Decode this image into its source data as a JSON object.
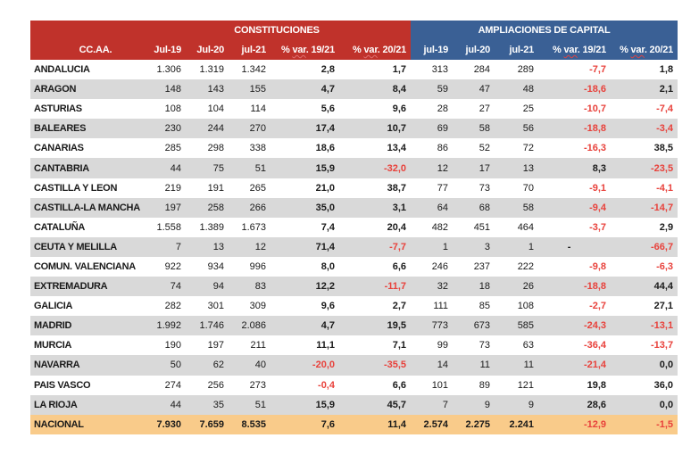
{
  "header": {
    "region_label": "CC.AA.",
    "group_constituciones": "CONSTITUCIONES",
    "group_ampliaciones": "AMPLIACIONES DE CAPITAL",
    "constituciones_columns": [
      "Jul-19",
      "Jul-20",
      "jul-21",
      "% var. 19/21",
      "% var. 20/21"
    ],
    "ampliaciones_columns": [
      "jul-19",
      "jul-20",
      "jul-21",
      "% var. 19/21",
      "% var. 20/21"
    ]
  },
  "colors": {
    "constituciones_header": "#c0322b",
    "ampliaciones_header": "#3a6095",
    "stripe": "#d9d9d9",
    "total_row": "#f9cb8a",
    "negative_text": "#e8413b"
  },
  "rows": [
    {
      "region": "ANDALUCIA",
      "c": [
        "1.306",
        "1.319",
        "1.342",
        "2,8",
        "1,7"
      ],
      "a": [
        "313",
        "284",
        "289",
        "-7,7",
        "1,8"
      ]
    },
    {
      "region": "ARAGON",
      "c": [
        "148",
        "143",
        "155",
        "4,7",
        "8,4"
      ],
      "a": [
        "59",
        "47",
        "48",
        "-18,6",
        "2,1"
      ]
    },
    {
      "region": "ASTURIAS",
      "c": [
        "108",
        "104",
        "114",
        "5,6",
        "9,6"
      ],
      "a": [
        "28",
        "27",
        "25",
        "-10,7",
        "-7,4"
      ]
    },
    {
      "region": "BALEARES",
      "c": [
        "230",
        "244",
        "270",
        "17,4",
        "10,7"
      ],
      "a": [
        "69",
        "58",
        "56",
        "-18,8",
        "-3,4"
      ]
    },
    {
      "region": "CANARIAS",
      "c": [
        "285",
        "298",
        "338",
        "18,6",
        "13,4"
      ],
      "a": [
        "86",
        "52",
        "72",
        "-16,3",
        "38,5"
      ]
    },
    {
      "region": "CANTABRIA",
      "c": [
        "44",
        "75",
        "51",
        "15,9",
        "-32,0"
      ],
      "a": [
        "12",
        "17",
        "13",
        "8,3",
        "-23,5"
      ]
    },
    {
      "region": "CASTILLA Y LEON",
      "c": [
        "219",
        "191",
        "265",
        "21,0",
        "38,7"
      ],
      "a": [
        "77",
        "73",
        "70",
        "-9,1",
        "-4,1"
      ]
    },
    {
      "region": "CASTILLA-LA MANCHA",
      "c": [
        "197",
        "258",
        "266",
        "35,0",
        "3,1"
      ],
      "a": [
        "64",
        "68",
        "58",
        "-9,4",
        "-14,7"
      ]
    },
    {
      "region": "CATALUÑA",
      "c": [
        "1.558",
        "1.389",
        "1.673",
        "7,4",
        "20,4"
      ],
      "a": [
        "482",
        "451",
        "464",
        "-3,7",
        "2,9"
      ]
    },
    {
      "region": "CEUTA Y MELILLA",
      "c": [
        "7",
        "13",
        "12",
        "71,4",
        "-7,7"
      ],
      "a": [
        "1",
        "3",
        "1",
        "-",
        "-66,7"
      ]
    },
    {
      "region": "COMUN. VALENCIANA",
      "c": [
        "922",
        "934",
        "996",
        "8,0",
        "6,6"
      ],
      "a": [
        "246",
        "237",
        "222",
        "-9,8",
        "-6,3"
      ]
    },
    {
      "region": "EXTREMADURA",
      "c": [
        "74",
        "94",
        "83",
        "12,2",
        "-11,7"
      ],
      "a": [
        "32",
        "18",
        "26",
        "-18,8",
        "44,4"
      ]
    },
    {
      "region": "GALICIA",
      "c": [
        "282",
        "301",
        "309",
        "9,6",
        "2,7"
      ],
      "a": [
        "111",
        "85",
        "108",
        "-2,7",
        "27,1"
      ]
    },
    {
      "region": "MADRID",
      "c": [
        "1.992",
        "1.746",
        "2.086",
        "4,7",
        "19,5"
      ],
      "a": [
        "773",
        "673",
        "585",
        "-24,3",
        "-13,1"
      ]
    },
    {
      "region": "MURCIA",
      "c": [
        "190",
        "197",
        "211",
        "11,1",
        "7,1"
      ],
      "a": [
        "99",
        "73",
        "63",
        "-36,4",
        "-13,7"
      ]
    },
    {
      "region": "NAVARRA",
      "c": [
        "50",
        "62",
        "40",
        "-20,0",
        "-35,5"
      ],
      "a": [
        "14",
        "11",
        "11",
        "-21,4",
        "0,0"
      ]
    },
    {
      "region": "PAIS VASCO",
      "c": [
        "274",
        "256",
        "273",
        "-0,4",
        "6,6"
      ],
      "a": [
        "101",
        "89",
        "121",
        "19,8",
        "36,0"
      ]
    },
    {
      "region": "LA RIOJA",
      "c": [
        "44",
        "35",
        "51",
        "15,9",
        "45,7"
      ],
      "a": [
        "7",
        "9",
        "9",
        "28,6",
        "0,0"
      ]
    }
  ],
  "total": {
    "region": "NACIONAL",
    "c": [
      "7.930",
      "7.659",
      "8.535",
      "7,6",
      "11,4"
    ],
    "a": [
      "2.574",
      "2.275",
      "2.241",
      "-12,9",
      "-1,5"
    ]
  }
}
